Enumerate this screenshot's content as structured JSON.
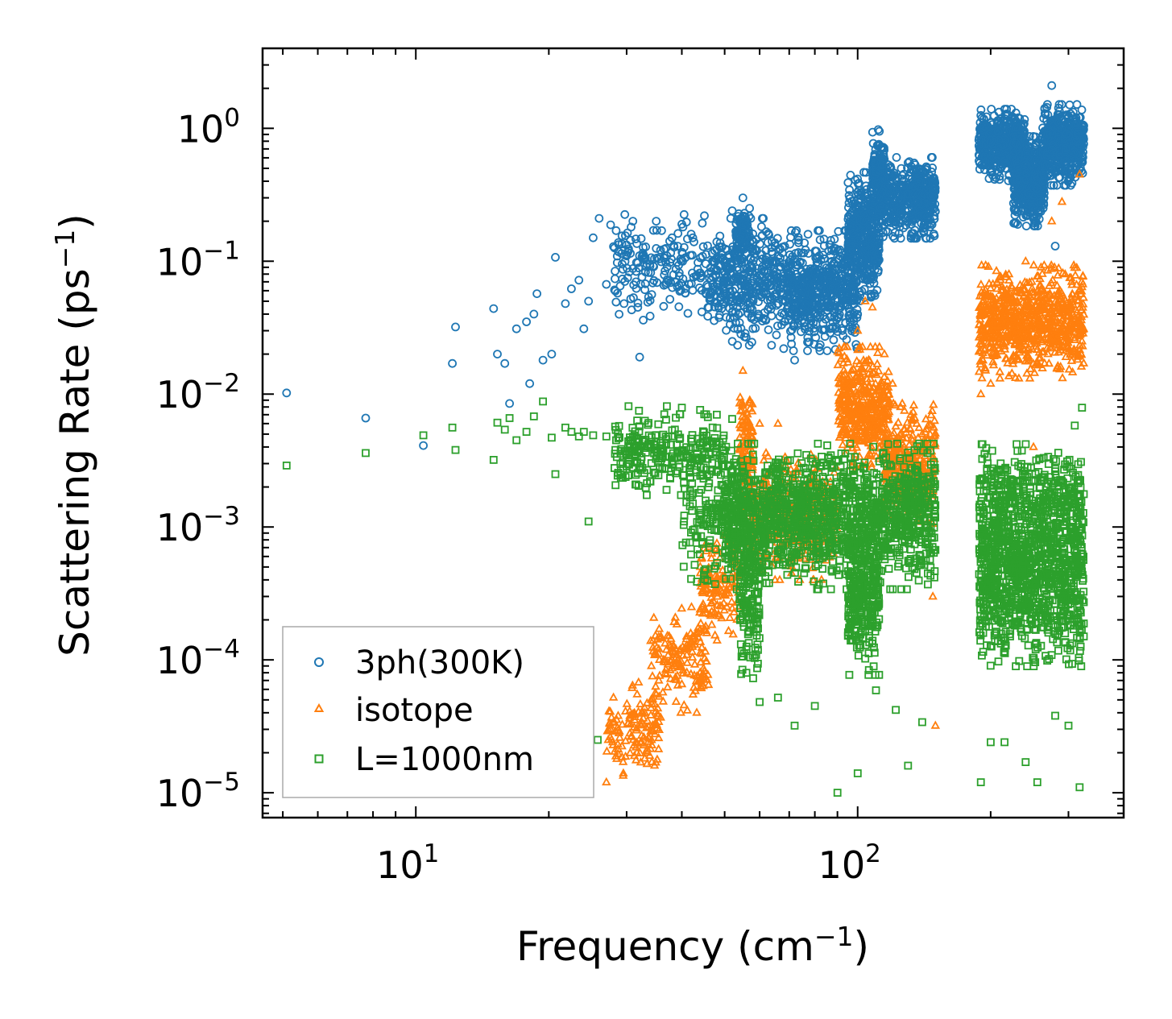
{
  "chart_data": {
    "type": "scatter",
    "title": "",
    "xlabel": {
      "base": "Frequency (cm",
      "sup": "−1",
      "tail": ")"
    },
    "ylabel": {
      "base": "Scattering Rate (ps",
      "sup": "−1",
      "tail": ")"
    },
    "xscale": "log",
    "yscale": "log",
    "xlim": [
      4.5,
      400
    ],
    "ylim": [
      6.5e-06,
      4
    ],
    "xticks": [
      {
        "value": 10,
        "base": "10",
        "exp": "1"
      },
      {
        "value": 100,
        "base": "10",
        "exp": "2"
      }
    ],
    "yticks": [
      {
        "value": 1,
        "base": "10",
        "exp": "0"
      },
      {
        "value": 0.1,
        "base": "10",
        "exp": "−1"
      },
      {
        "value": 0.01,
        "base": "10",
        "exp": "−2"
      },
      {
        "value": 0.001,
        "base": "10",
        "exp": "−3"
      },
      {
        "value": 0.0001,
        "base": "10",
        "exp": "−4"
      },
      {
        "value": 1e-05,
        "base": "10",
        "exp": "−5"
      }
    ],
    "legend_position": "lower-left",
    "series": [
      {
        "name": "3ph(300K)",
        "marker": "circle",
        "color": "#1f77b4",
        "points": [
          [
            5.1,
            0.0102
          ],
          [
            7.7,
            0.0066
          ],
          [
            10.4,
            0.0041
          ],
          [
            12.1,
            0.017
          ],
          [
            12.3,
            0.032
          ],
          [
            15.0,
            0.044
          ],
          [
            15.3,
            0.02
          ],
          [
            15.9,
            0.017
          ],
          [
            16.3,
            0.0085
          ],
          [
            16.9,
            0.031
          ],
          [
            17.8,
            0.035
          ],
          [
            18.1,
            0.012
          ],
          [
            18.5,
            0.04
          ],
          [
            18.8,
            0.057
          ],
          [
            19.4,
            0.018
          ],
          [
            20.3,
            0.02
          ],
          [
            20.7,
            0.107
          ],
          [
            21.8,
            0.048
          ],
          [
            22.5,
            0.062
          ],
          [
            23.4,
            0.072
          ],
          [
            24.0,
            0.031
          ],
          [
            24.6,
            0.05
          ],
          [
            25.2,
            0.15
          ],
          [
            26.0,
            0.21
          ],
          [
            27.0,
            0.067
          ],
          [
            27.6,
            0.188
          ],
          [
            28.4,
            0.17
          ],
          [
            29.0,
            0.065
          ],
          [
            29.6,
            0.048
          ],
          [
            30.3,
            0.12
          ],
          [
            31.0,
            0.2
          ],
          [
            31.8,
            0.045
          ],
          [
            32.1,
            0.019
          ],
          [
            33.0,
            0.061
          ],
          [
            34.0,
            0.082
          ],
          [
            35.0,
            0.2
          ],
          [
            36.0,
            0.17
          ],
          [
            37.0,
            0.11
          ],
          [
            38.0,
            0.15
          ],
          [
            40.0,
            0.19
          ],
          [
            42.0,
            0.16
          ],
          [
            45.0,
            0.22
          ],
          [
            48.0,
            0.14
          ],
          [
            52.0,
            0.24
          ],
          [
            55.0,
            0.3
          ],
          [
            58.0,
            0.05
          ],
          [
            62.0,
            0.036
          ],
          [
            68.0,
            0.022
          ],
          [
            72.0,
            0.018
          ],
          [
            80.0,
            0.045
          ],
          [
            88.0,
            0.032
          ],
          [
            95.0,
            0.11
          ],
          [
            105.0,
            0.28
          ],
          [
            112.0,
            0.95
          ],
          [
            120.0,
            0.44
          ],
          [
            130.0,
            0.55
          ],
          [
            140.0,
            0.46
          ],
          [
            148.0,
            0.42
          ],
          [
            190.0,
            1.25
          ],
          [
            200.0,
            0.95
          ],
          [
            215.0,
            0.7
          ],
          [
            230.0,
            0.6
          ],
          [
            250.0,
            0.25
          ],
          [
            265.0,
            1.4
          ],
          [
            275.0,
            2.1
          ],
          [
            280.0,
            0.13
          ],
          [
            300.0,
            1.2
          ],
          [
            320.0,
            0.75
          ]
        ],
        "clusters": [
          {
            "x": [
              28,
              46
            ],
            "ycenter": 0.09,
            "spread": 2.0,
            "n": 180
          },
          {
            "x": [
              46,
              70
            ],
            "ycenter": 0.07,
            "spread": 2.3,
            "n": 420
          },
          {
            "x": [
              53,
              57
            ],
            "ycenter": 0.17,
            "spread": 1.5,
            "n": 80
          },
          {
            "x": [
              70,
              100
            ],
            "ycenter": 0.06,
            "spread": 2.2,
            "n": 520
          },
          {
            "x": [
              95,
              112
            ],
            "ycenter": 0.16,
            "spread": 2.4,
            "n": 420
          },
          {
            "x": [
              108,
              115
            ],
            "ycenter": 0.45,
            "spread": 1.8,
            "n": 140
          },
          {
            "x": [
              112,
              150
            ],
            "ycenter": 0.3,
            "spread": 1.7,
            "n": 480
          },
          {
            "x": [
              188,
              240
            ],
            "ycenter": 0.75,
            "spread": 1.6,
            "n": 520
          },
          {
            "x": [
              225,
              265
            ],
            "ycenter": 0.4,
            "spread": 1.8,
            "n": 420
          },
          {
            "x": [
              262,
              325
            ],
            "ycenter": 0.75,
            "spread": 1.7,
            "n": 520
          }
        ]
      },
      {
        "name": "isotope",
        "marker": "triangle",
        "color": "#ff7f0e",
        "points": [
          [
            27.0,
            1.2e-05
          ],
          [
            28.5,
            1.8e-05
          ],
          [
            29.5,
            1.4e-05
          ],
          [
            30.5,
            2.8e-05
          ],
          [
            31.5,
            2.2e-05
          ],
          [
            33.0,
            4e-05
          ],
          [
            35.0,
            5.5e-05
          ],
          [
            38.0,
            0.0001
          ],
          [
            41.0,
            0.00015
          ],
          [
            44.0,
            0.00024
          ],
          [
            48.0,
            0.0004
          ],
          [
            52.0,
            0.0007
          ],
          [
            55.0,
            0.015
          ],
          [
            57.0,
            0.009
          ],
          [
            60.0,
            0.006
          ],
          [
            63.0,
            0.002
          ],
          [
            66.0,
            0.006
          ],
          [
            78.0,
            0.0012
          ],
          [
            92.0,
            0.01
          ],
          [
            100.0,
            0.03
          ],
          [
            104.0,
            0.05
          ],
          [
            108.0,
            0.045
          ],
          [
            115.0,
            0.02
          ],
          [
            120.0,
            0.012
          ],
          [
            125.0,
            0.008
          ],
          [
            132.0,
            0.007
          ],
          [
            140.0,
            0.005
          ],
          [
            148.0,
            0.0003
          ],
          [
            150.0,
            3.2e-05
          ],
          [
            190.0,
            0.01
          ],
          [
            200.0,
            0.012
          ],
          [
            210.0,
            0.05
          ],
          [
            220.0,
            0.08
          ],
          [
            240.0,
            0.1
          ],
          [
            250.0,
            0.004
          ],
          [
            260.0,
            0.09
          ],
          [
            275.0,
            0.2
          ],
          [
            290.0,
            0.28
          ],
          [
            305.0,
            0.07
          ],
          [
            318.0,
            0.45
          ],
          [
            322.0,
            0.025
          ]
        ],
        "clusters": [
          {
            "x": [
              27,
              36
            ],
            "ycenter": 3e-05,
            "spread": 1.9,
            "n": 130
          },
          {
            "x": [
              34,
              46
            ],
            "ycenter": 0.0001,
            "spread": 2.0,
            "n": 160
          },
          {
            "x": [
              44,
              54
            ],
            "ycenter": 0.00035,
            "spread": 2.0,
            "n": 140
          },
          {
            "x": [
              54,
              58
            ],
            "ycenter": 0.004,
            "spread": 2.3,
            "n": 120
          },
          {
            "x": [
              57,
              90
            ],
            "ycenter": 0.0012,
            "spread": 2.3,
            "n": 380
          },
          {
            "x": [
              90,
              118
            ],
            "ycenter": 0.008,
            "spread": 2.2,
            "n": 420
          },
          {
            "x": [
              115,
              150
            ],
            "ycenter": 0.003,
            "spread": 2.2,
            "n": 320
          },
          {
            "x": [
              188,
              325
            ],
            "ycenter": 0.035,
            "spread": 2.1,
            "n": 800
          }
        ]
      },
      {
        "name": "L=1000nm",
        "marker": "square",
        "color": "#2ca02c",
        "points": [
          [
            5.1,
            0.0029
          ],
          [
            7.7,
            0.0036
          ],
          [
            10.4,
            0.0049
          ],
          [
            12.1,
            0.0056
          ],
          [
            12.3,
            0.0038
          ],
          [
            15.0,
            0.0032
          ],
          [
            15.3,
            0.0061
          ],
          [
            15.9,
            0.0054
          ],
          [
            16.3,
            0.0066
          ],
          [
            16.9,
            0.0045
          ],
          [
            17.8,
            0.0052
          ],
          [
            18.5,
            0.0068
          ],
          [
            19.4,
            0.0088
          ],
          [
            20.3,
            0.0047
          ],
          [
            20.7,
            0.0025
          ],
          [
            21.8,
            0.0056
          ],
          [
            22.5,
            0.0052
          ],
          [
            23.4,
            0.0048
          ],
          [
            24.0,
            0.0052
          ],
          [
            24.6,
            0.0011
          ],
          [
            25.2,
            0.0049
          ],
          [
            25.8,
            2.5e-05
          ],
          [
            27.0,
            0.0048
          ],
          [
            28.4,
            0.0045
          ],
          [
            30.3,
            0.0081
          ],
          [
            31.0,
            0.0045
          ],
          [
            32.0,
            0.0075
          ],
          [
            33.0,
            0.0063
          ],
          [
            35.0,
            0.0044
          ],
          [
            37.0,
            0.0081
          ],
          [
            40.0,
            0.0079
          ],
          [
            44.0,
            0.0076
          ],
          [
            48.0,
            0.007
          ],
          [
            52.0,
            0.0065
          ],
          [
            56.0,
            8e-05
          ],
          [
            60.0,
            4.82e-05
          ],
          [
            66.0,
            5.2e-05
          ],
          [
            72.0,
            3.2e-05
          ],
          [
            80.0,
            4.5e-05
          ],
          [
            90.0,
            1e-05
          ],
          [
            100.0,
            1.4e-05
          ],
          [
            110.0,
            5.9e-05
          ],
          [
            122.0,
            4.2e-05
          ],
          [
            130.0,
            1.6e-05
          ],
          [
            140.0,
            3.4e-05
          ],
          [
            190.0,
            1.2e-05
          ],
          [
            200.0,
            2.4e-05
          ],
          [
            215.0,
            2.4e-05
          ],
          [
            240.0,
            1.7e-05
          ],
          [
            255.0,
            1.2e-05
          ],
          [
            280.0,
            3.8e-05
          ],
          [
            300.0,
            3.2e-05
          ],
          [
            310.0,
            0.0058
          ],
          [
            318.0,
            1.1e-05
          ],
          [
            322.0,
            0.0079
          ],
          [
            325.0,
            0.00015
          ]
        ],
        "clusters": [
          {
            "x": [
              28,
              50
            ],
            "ycenter": 0.0035,
            "spread": 1.7,
            "n": 260
          },
          {
            "x": [
              40,
              56
            ],
            "ycenter": 0.0012,
            "spread": 2.5,
            "n": 180
          },
          {
            "x": [
              50,
              150
            ],
            "ycenter": 0.0012,
            "spread": 2.6,
            "n": 1500
          },
          {
            "x": [
              54,
              60
            ],
            "ycenter": 0.0003,
            "spread": 3.0,
            "n": 160
          },
          {
            "x": [
              95,
              112
            ],
            "ycenter": 0.0003,
            "spread": 2.8,
            "n": 300
          },
          {
            "x": [
              188,
              325
            ],
            "ycenter": 0.00045,
            "spread": 3.4,
            "n": 1100
          },
          {
            "x": [
              188,
              325
            ],
            "ycenter": 0.0018,
            "spread": 1.9,
            "n": 300
          }
        ]
      }
    ]
  }
}
